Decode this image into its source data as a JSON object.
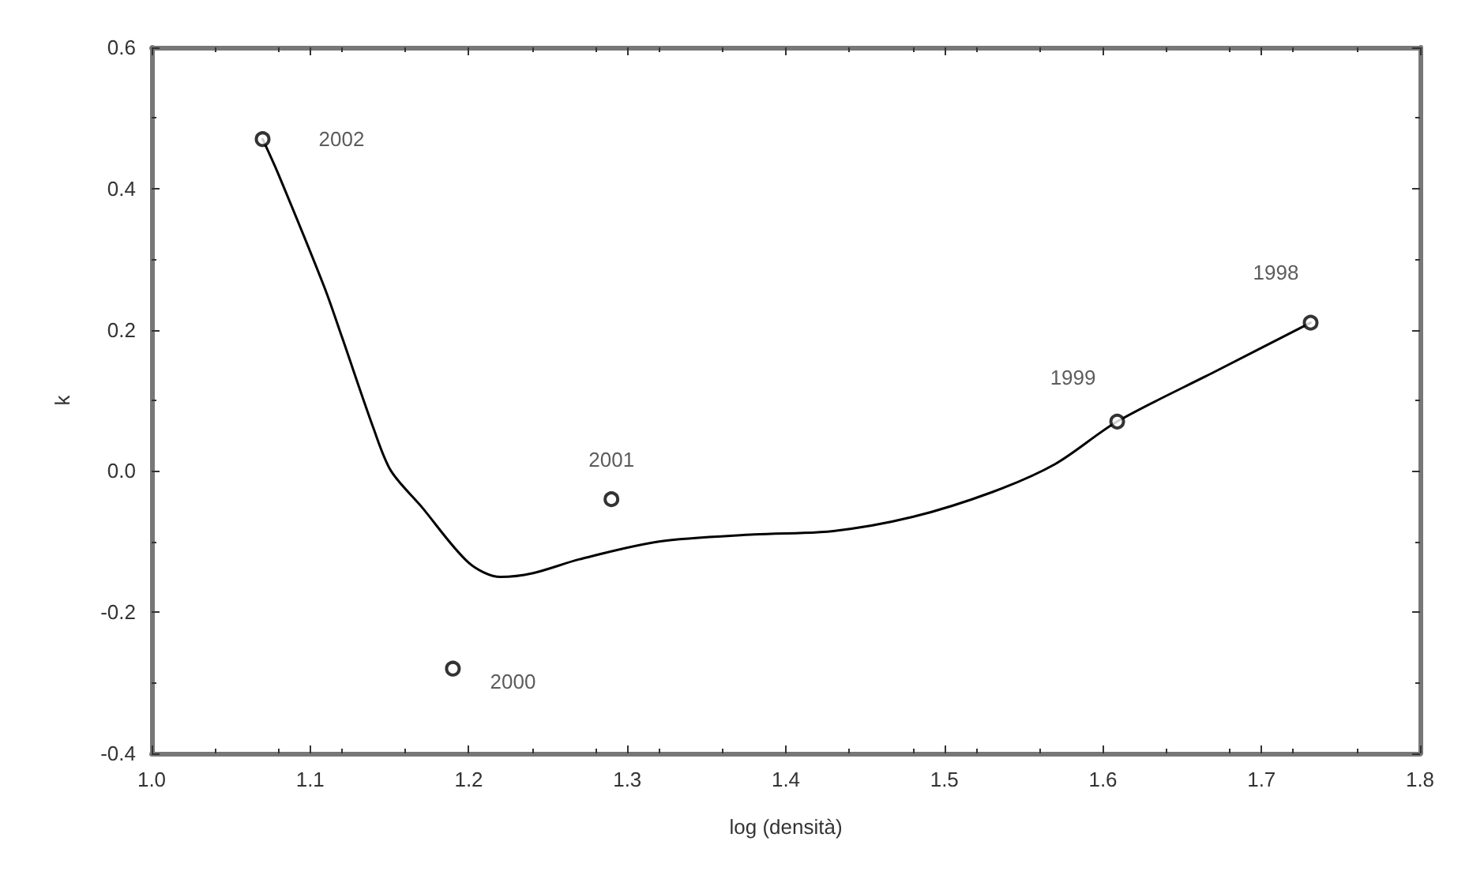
{
  "chart_data": {
    "type": "scatter",
    "xlabel": "log (densità)",
    "ylabel": "k",
    "xlim": [
      1.0,
      1.8
    ],
    "xticks": [
      {
        "value": 1.0,
        "label": "1.0"
      },
      {
        "value": 1.1,
        "label": "1.1"
      },
      {
        "value": 1.2,
        "label": "1.2"
      },
      {
        "value": 1.3,
        "label": "1.3"
      },
      {
        "value": 1.4,
        "label": "1.4"
      },
      {
        "value": 1.5,
        "label": "1.5"
      },
      {
        "value": 1.6,
        "label": "1.6"
      },
      {
        "value": 1.7,
        "label": "1.7"
      },
      {
        "value": 1.8,
        "label": "1.8"
      }
    ],
    "ylim": [
      -0.4,
      0.6
    ],
    "yticks": [
      {
        "value": -0.4,
        "label": "-0.4"
      },
      {
        "value": -0.2,
        "label": "-0.2"
      },
      {
        "value": 0,
        "label": "0.0"
      },
      {
        "value": 0.2,
        "label": "0.2"
      },
      {
        "value": 0.4,
        "label": "0.4"
      },
      {
        "value": 0.6,
        "label": "0.6"
      }
    ],
    "grid": false,
    "marker": "circle",
    "series": [
      {
        "color": "#000000",
        "x": [
          1.07,
          1.19,
          1.29,
          1.609,
          1.731
        ],
        "values": [
          0.47,
          -0.28,
          -0.04,
          0.07,
          0.21
        ]
      },
      {
        "type": "line",
        "color": "#000000",
        "marker": "none",
        "line_style": "solid",
        "x": [
          1.07,
          1.08,
          1.109,
          1.12,
          1.14,
          1.151,
          1.17,
          1.2,
          1.22,
          1.24,
          1.27,
          1.32,
          1.38,
          1.43,
          1.48,
          1.53,
          1.57,
          1.609,
          1.67,
          1.731
        ],
        "values": [
          0.47,
          0.42,
          0.26,
          0.19,
          0.06,
          0.0,
          -0.05,
          -0.13,
          -0.15,
          -0.145,
          -0.125,
          -0.1,
          -0.09,
          -0.085,
          -0.065,
          -0.03,
          0.01,
          0.07,
          0.14,
          0.21
        ]
      }
    ],
    "annotations": [
      {
        "text": "2002",
        "x": 1.07,
        "y": 0.47
      },
      {
        "text": "2001",
        "x": 1.29,
        "y": -0.04
      },
      {
        "text": "2000",
        "x": 1.19,
        "y": -0.28
      },
      {
        "text": "1999",
        "x": 1.609,
        "y": 0.07
      },
      {
        "text": "1998",
        "x": 1.731,
        "y": 0.21
      }
    ]
  }
}
